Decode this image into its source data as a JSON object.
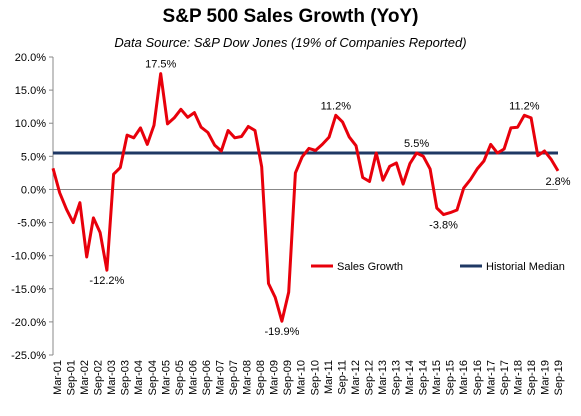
{
  "chart_data": {
    "type": "line",
    "title": "S&P 500 Sales Growth (YoY)",
    "subtitle": "Data Source: S&P Dow Jones (19% of Companies Reported)",
    "xlabel": "",
    "ylabel": "",
    "ylim": [
      -25,
      20
    ],
    "y_ticks": [
      "20.0%",
      "15.0%",
      "10.0%",
      "5.0%",
      "0.0%",
      "-5.0%",
      "-10.0%",
      "-15.0%",
      "-20.0%",
      "-25.0%"
    ],
    "y_tick_values": [
      20,
      15,
      10,
      5,
      0,
      -5,
      -10,
      -15,
      -20,
      -25
    ],
    "x_tick_labels": [
      "Mar-01",
      "Sep-01",
      "Mar-02",
      "Sep-02",
      "Mar-03",
      "Sep-03",
      "Mar-04",
      "Sep-04",
      "Mar-05",
      "Sep-05",
      "Mar-06",
      "Sep-06",
      "Mar-07",
      "Sep-07",
      "Mar-08",
      "Sep-08",
      "Mar-09",
      "Sep-09",
      "Mar-10",
      "Sep-10",
      "Mar-11",
      "Sep-11",
      "Mar-12",
      "Sep-12",
      "Mar-13",
      "Sep-13",
      "Mar-14",
      "Sep-14",
      "Mar-15",
      "Sep-15",
      "Mar-16",
      "Sep-16",
      "Mar-17",
      "Sep-17",
      "Mar-18",
      "Sep-18",
      "Mar-19",
      "Sep-19"
    ],
    "grid": false,
    "legend_position": "bottom-right",
    "series": [
      {
        "name": "Sales Growth",
        "color": "#e8000b",
        "values": [
          3.2,
          -0.5,
          -3.0,
          -5.0,
          -2.0,
          -10.2,
          -4.3,
          -6.5,
          -12.2,
          2.3,
          3.3,
          8.2,
          7.8,
          9.3,
          6.8,
          9.7,
          17.5,
          9.9,
          10.8,
          12.1,
          10.9,
          11.6,
          9.4,
          8.6,
          6.7,
          5.8,
          8.9,
          7.8,
          8.0,
          9.5,
          8.9,
          3.4,
          -14.2,
          -16.3,
          -19.9,
          -15.5,
          2.5,
          4.9,
          6.2,
          5.9,
          6.8,
          7.9,
          11.2,
          10.2,
          7.9,
          6.6,
          1.8,
          1.2,
          5.5,
          1.4,
          3.5,
          4.0,
          0.8,
          3.9,
          5.5,
          5.0,
          3.1,
          -2.8,
          -3.8,
          -3.5,
          -3.1,
          0.2,
          1.5,
          3.1,
          4.3,
          6.8,
          5.5,
          6.1,
          9.3,
          9.4,
          11.2,
          10.8,
          5.1,
          5.8,
          4.5,
          2.8
        ]
      },
      {
        "name": "Historial Median",
        "color": "#1f3864",
        "values": [
          5.5
        ]
      }
    ],
    "annotations": [
      {
        "text": "17.5%",
        "index": 16,
        "value": 17.5,
        "pos": "above"
      },
      {
        "text": "-12.2%",
        "index": 8,
        "value": -12.2,
        "pos": "below"
      },
      {
        "text": "11.2%",
        "index": 42,
        "value": 11.2,
        "pos": "above"
      },
      {
        "text": "-19.9%",
        "index": 34,
        "value": -19.9,
        "pos": "below"
      },
      {
        "text": "5.5%",
        "index": 54,
        "value": 5.5,
        "pos": "above"
      },
      {
        "text": "-3.8%",
        "index": 58,
        "value": -3.8,
        "pos": "below"
      },
      {
        "text": "11.2%",
        "index": 70,
        "value": 11.2,
        "pos": "above"
      },
      {
        "text": "2.8%",
        "index": 75,
        "value": 2.8,
        "pos": "below"
      }
    ]
  }
}
